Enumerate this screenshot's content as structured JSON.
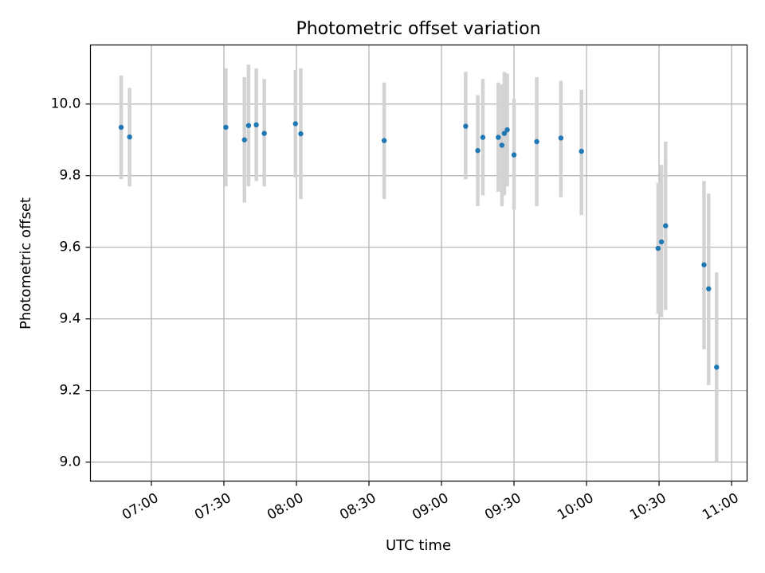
{
  "chart_data": {
    "type": "scatter",
    "title": "Photometric offset variation",
    "xlabel": "UTC time",
    "ylabel": "Photometric offset",
    "x_tick_labels": [
      "07:00",
      "07:30",
      "08:00",
      "08:30",
      "09:00",
      "09:30",
      "10:00",
      "10:30",
      "11:00"
    ],
    "x_tick_minutes": [
      420,
      450,
      480,
      510,
      540,
      570,
      600,
      630,
      660
    ],
    "y_ticks": [
      9.0,
      9.2,
      9.4,
      9.6,
      9.8,
      10.0
    ],
    "y_tick_labels": [
      "9.0",
      "9.2",
      "9.4",
      "9.6",
      "9.8",
      "10.0"
    ],
    "xlim_minutes": [
      394.8,
      666.4
    ],
    "ylim": [
      8.947,
      10.165
    ],
    "grid": true,
    "point_color": "#1f77b4",
    "errorbar_color": "#d3d3d3",
    "points": [
      {
        "t": 407.5,
        "y": 9.935,
        "low": 9.79,
        "high": 10.08
      },
      {
        "t": 411.0,
        "y": 9.908,
        "low": 9.77,
        "high": 10.045
      },
      {
        "t": 450.8,
        "y": 9.935,
        "low": 9.77,
        "high": 10.1
      },
      {
        "t": 458.5,
        "y": 9.9,
        "low": 9.725,
        "high": 10.075
      },
      {
        "t": 460.2,
        "y": 9.94,
        "low": 9.77,
        "high": 10.11
      },
      {
        "t": 463.4,
        "y": 9.942,
        "low": 9.785,
        "high": 10.1
      },
      {
        "t": 466.7,
        "y": 9.918,
        "low": 9.77,
        "high": 10.07
      },
      {
        "t": 479.6,
        "y": 9.945,
        "low": 9.795,
        "high": 10.095
      },
      {
        "t": 481.8,
        "y": 9.917,
        "low": 9.735,
        "high": 10.1
      },
      {
        "t": 516.3,
        "y": 9.898,
        "low": 9.735,
        "high": 10.06
      },
      {
        "t": 550.0,
        "y": 9.938,
        "low": 9.79,
        "high": 10.09
      },
      {
        "t": 555.0,
        "y": 9.87,
        "low": 9.715,
        "high": 10.025
      },
      {
        "t": 557.1,
        "y": 9.907,
        "low": 9.745,
        "high": 10.07
      },
      {
        "t": 563.5,
        "y": 9.907,
        "low": 9.755,
        "high": 10.06
      },
      {
        "t": 565.0,
        "y": 9.885,
        "low": 9.715,
        "high": 10.055
      },
      {
        "t": 566.0,
        "y": 9.918,
        "low": 9.745,
        "high": 10.09
      },
      {
        "t": 567.2,
        "y": 9.928,
        "low": 9.77,
        "high": 10.085
      },
      {
        "t": 570.0,
        "y": 9.858,
        "low": 9.705,
        "high": 10.015
      },
      {
        "t": 579.4,
        "y": 9.895,
        "low": 9.715,
        "high": 10.075
      },
      {
        "t": 589.4,
        "y": 9.905,
        "low": 9.74,
        "high": 10.065
      },
      {
        "t": 597.9,
        "y": 9.868,
        "low": 9.69,
        "high": 10.04
      },
      {
        "t": 629.6,
        "y": 9.597,
        "low": 9.415,
        "high": 9.78
      },
      {
        "t": 631.0,
        "y": 9.615,
        "low": 9.405,
        "high": 9.83
      },
      {
        "t": 632.7,
        "y": 9.66,
        "low": 9.425,
        "high": 9.895
      },
      {
        "t": 648.6,
        "y": 9.551,
        "low": 9.315,
        "high": 9.785
      },
      {
        "t": 650.5,
        "y": 9.484,
        "low": 9.215,
        "high": 9.75
      },
      {
        "t": 653.8,
        "y": 9.265,
        "low": 9.0,
        "high": 9.53
      }
    ]
  }
}
